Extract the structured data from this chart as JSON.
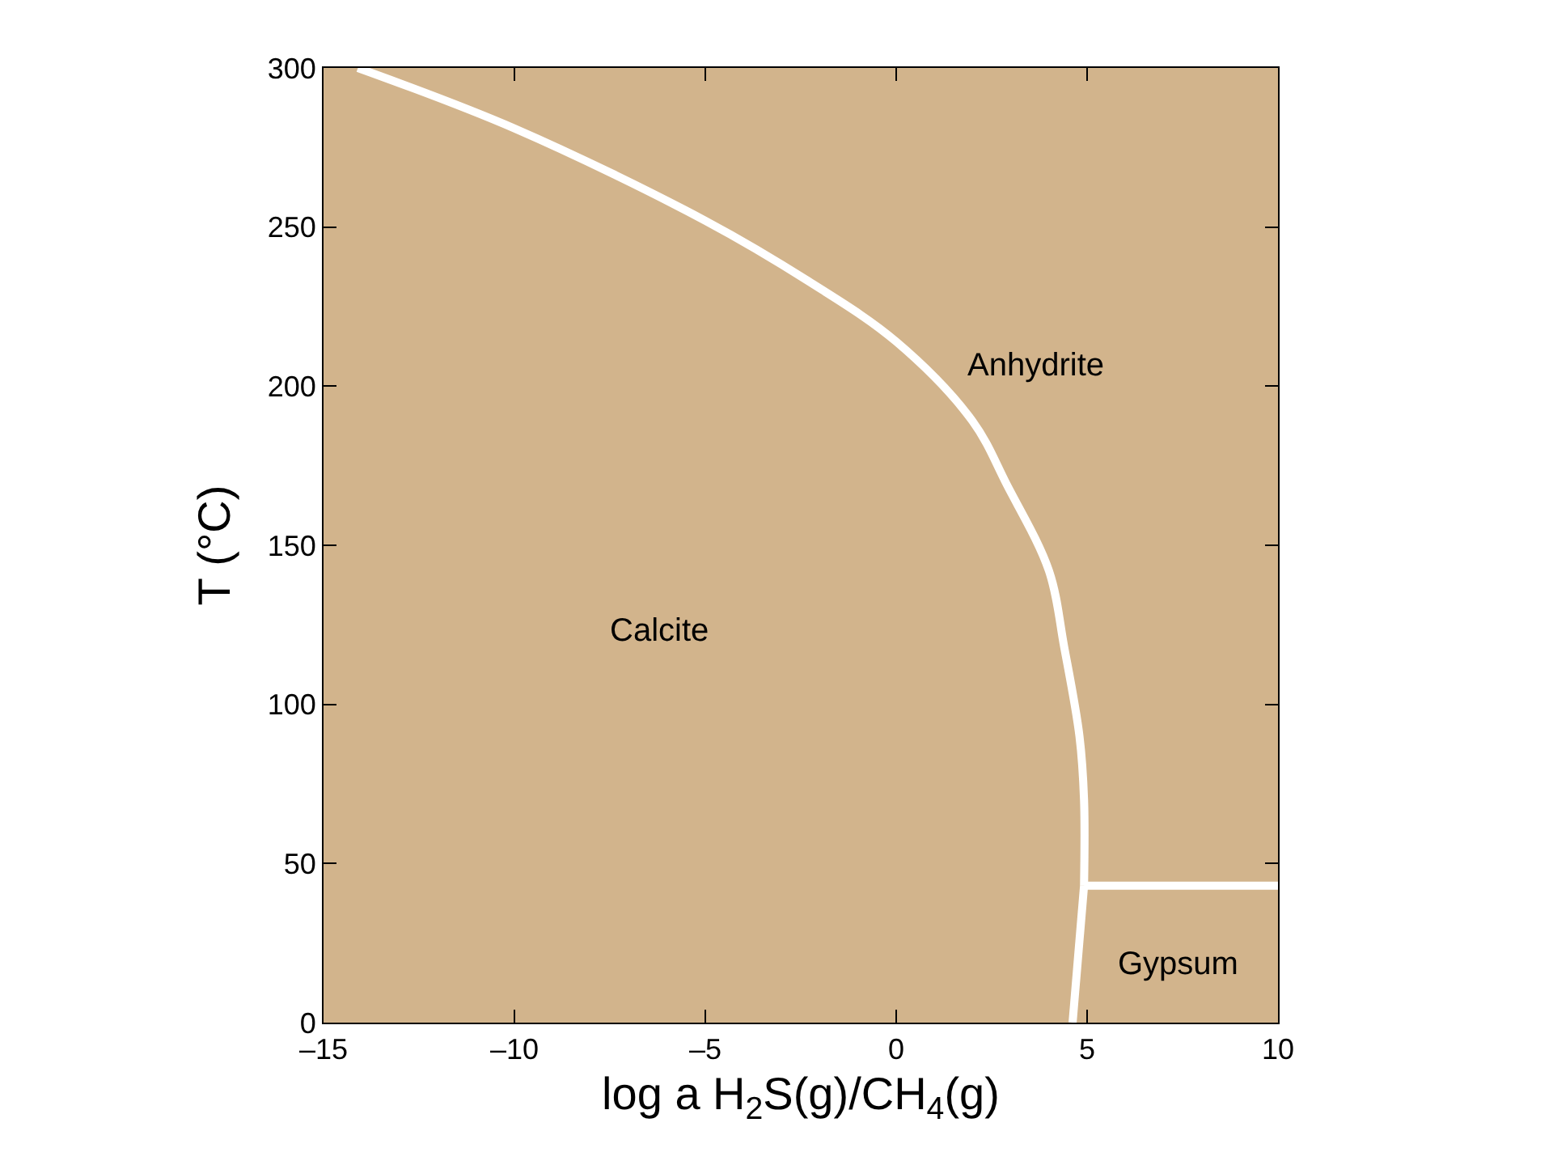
{
  "chart_data": {
    "type": "line",
    "xlabel": "log a H$_{2}$S(g)/CH$_{4}$(g)",
    "ylabel": "T (°C)",
    "xlim": [
      -15,
      10
    ],
    "ylim": [
      0,
      300
    ],
    "xticks": [
      {
        "value": -15,
        "label": "–15"
      },
      {
        "value": -10,
        "label": "–10"
      },
      {
        "value": -5,
        "label": "–5"
      },
      0,
      5,
      10
    ],
    "yticks": [
      0,
      50,
      100,
      150,
      200,
      250,
      300
    ],
    "grid": false,
    "marker": "none",
    "line_style": "solid",
    "series": [
      {
        "color": "#ffffff",
        "x": [
          -14.1,
          -10,
          -5,
          -2.3,
          0,
          2,
          2.9,
          4,
          4.4,
          4.8,
          4.92,
          4.92
        ],
        "values": [
          300,
          281,
          252,
          233,
          214,
          189,
          169,
          142,
          118,
          90,
          70,
          43
        ]
      },
      {
        "color": "#ffffff",
        "x": [
          4.92,
          4.62
        ],
        "values": [
          43,
          0
        ]
      },
      {
        "color": "#ffffff",
        "x": [
          4.92,
          10
        ],
        "values": [
          43,
          43
        ]
      }
    ],
    "annotations": [
      "Anhydrite",
      "Calcite",
      "Gypsum"
    ]
  }
}
